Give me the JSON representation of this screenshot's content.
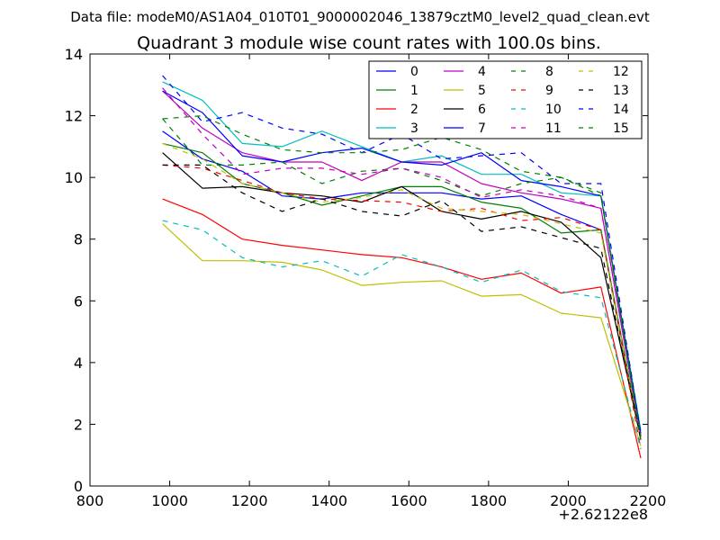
{
  "header": {
    "file_label": "Data file: modeM0/AS1A04_010T01_9000002046_13879cztM0_level2_quad_clean.evt",
    "title": "Quadrant 3 module wise count rates with 100.0s bins."
  },
  "chart_data": {
    "type": "line",
    "title": "Quadrant 3 module wise count rates with 100.0s bins.",
    "xlabel": "",
    "ylabel": "",
    "x_offset_label": "+2.62122e8",
    "xlim": [
      800,
      2200
    ],
    "ylim": [
      0,
      14
    ],
    "xticks": [
      800,
      1000,
      1200,
      1400,
      1600,
      1800,
      2000,
      2200
    ],
    "yticks": [
      0,
      2,
      4,
      6,
      8,
      10,
      12,
      14
    ],
    "grid": false,
    "legend_position": "top-right",
    "x": [
      982,
      1082,
      1182,
      1282,
      1382,
      1482,
      1582,
      1682,
      1782,
      1882,
      1982,
      2082,
      2182
    ],
    "series": [
      {
        "name": "0",
        "color": "#0000ff",
        "dash": "solid",
        "values": [
          11.5,
          10.6,
          10.2,
          9.4,
          9.3,
          9.5,
          9.5,
          9.5,
          9.3,
          9.4,
          8.8,
          8.3,
          1.5
        ]
      },
      {
        "name": "1",
        "color": "#008000",
        "dash": "solid",
        "values": [
          11.1,
          10.8,
          9.8,
          9.5,
          9.1,
          9.4,
          9.7,
          9.7,
          9.2,
          9.0,
          8.2,
          8.3,
          1.5
        ]
      },
      {
        "name": "2",
        "color": "#ff0000",
        "dash": "solid",
        "values": [
          9.3,
          8.8,
          8.0,
          7.8,
          7.65,
          7.5,
          7.4,
          7.1,
          6.7,
          6.9,
          6.25,
          6.45,
          0.9
        ]
      },
      {
        "name": "3",
        "color": "#00bfbf",
        "dash": "solid",
        "values": [
          13.1,
          12.5,
          11.1,
          11.0,
          11.5,
          11.0,
          10.5,
          10.7,
          10.1,
          10.1,
          9.5,
          9.4,
          1.8
        ]
      },
      {
        "name": "4",
        "color": "#bf00bf",
        "dash": "solid",
        "values": [
          12.8,
          11.6,
          10.8,
          10.5,
          10.5,
          9.9,
          10.5,
          10.5,
          9.8,
          9.5,
          9.3,
          9.0,
          1.6
        ]
      },
      {
        "name": "5",
        "color": "#bfbf00",
        "dash": "solid",
        "values": [
          8.5,
          7.3,
          7.3,
          7.25,
          7.0,
          6.5,
          6.6,
          6.65,
          6.15,
          6.2,
          5.6,
          5.45,
          1.3
        ]
      },
      {
        "name": "6",
        "color": "#000000",
        "dash": "solid",
        "values": [
          10.8,
          9.65,
          9.7,
          9.5,
          9.4,
          9.2,
          9.7,
          8.9,
          8.65,
          8.9,
          8.55,
          7.4,
          1.6
        ]
      },
      {
        "name": "7",
        "color": "#0000ff",
        "dash": "solid",
        "values": [
          12.8,
          12.1,
          10.7,
          10.5,
          10.8,
          10.95,
          10.5,
          10.4,
          10.8,
          9.9,
          9.7,
          9.4,
          1.7
        ]
      },
      {
        "name": "8",
        "color": "#008000",
        "dash": "dashed",
        "values": [
          11.9,
          10.4,
          10.4,
          10.5,
          9.8,
          10.2,
          10.3,
          9.9,
          9.4,
          9.8,
          10.0,
          9.4,
          1.5
        ]
      },
      {
        "name": "9",
        "color": "#ff0000",
        "dash": "dashed",
        "values": [
          10.4,
          10.3,
          9.9,
          9.5,
          9.3,
          9.25,
          9.2,
          8.9,
          9.0,
          8.6,
          8.7,
          8.3,
          1.2
        ]
      },
      {
        "name": "10",
        "color": "#00bfbf",
        "dash": "dashed",
        "values": [
          8.6,
          8.3,
          7.4,
          7.1,
          7.3,
          6.8,
          7.5,
          7.1,
          6.6,
          7.0,
          6.3,
          6.1,
          1.2
        ]
      },
      {
        "name": "11",
        "color": "#bf00bf",
        "dash": "dashed",
        "values": [
          12.9,
          11.4,
          10.1,
          10.3,
          10.3,
          10.1,
          10.3,
          10.0,
          9.35,
          9.6,
          9.4,
          9.0,
          1.6
        ]
      },
      {
        "name": "12",
        "color": "#bfbf00",
        "dash": "dashed",
        "values": [
          11.1,
          10.6,
          9.8,
          9.5,
          9.2,
          9.35,
          9.6,
          9.0,
          8.9,
          8.8,
          8.5,
          8.2,
          1.5
        ]
      },
      {
        "name": "13",
        "color": "#000000",
        "dash": "dashed",
        "values": [
          10.4,
          10.4,
          9.5,
          8.9,
          9.3,
          8.9,
          8.75,
          9.25,
          8.25,
          8.4,
          8.05,
          7.7,
          1.5
        ]
      },
      {
        "name": "14",
        "color": "#0000ff",
        "dash": "dashed",
        "values": [
          13.3,
          11.8,
          12.1,
          11.6,
          11.4,
          10.8,
          11.4,
          10.6,
          10.7,
          10.8,
          9.8,
          9.8,
          1.7
        ]
      },
      {
        "name": "15",
        "color": "#008000",
        "dash": "dashed",
        "values": [
          11.9,
          12.0,
          11.4,
          10.9,
          10.8,
          10.8,
          10.9,
          11.3,
          10.9,
          10.2,
          10.0,
          9.5,
          1.6
        ]
      }
    ]
  }
}
